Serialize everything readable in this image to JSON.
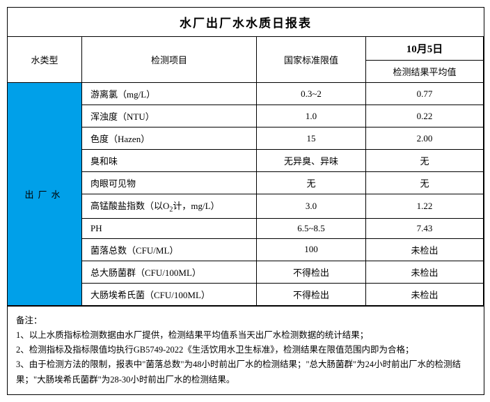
{
  "title": "水厂出厂水水质日报表",
  "header": {
    "type": "水类型",
    "item": "检测项目",
    "standard": "国家标准限值",
    "date": "10月5日",
    "result": "检测结果平均值"
  },
  "water_type": "出厂水",
  "rows": [
    {
      "item": "游离氯（mg/L）",
      "std": "0.3~2",
      "res": "0.77"
    },
    {
      "item": "浑浊度（NTU）",
      "std": "1.0",
      "res": "0.22"
    },
    {
      "item": "色度（Hazen）",
      "std": "15",
      "res": "2.00"
    },
    {
      "item": "臭和味",
      "std": "无异臭、异味",
      "res": "无"
    },
    {
      "item": "肉眼可见物",
      "std": "无",
      "res": "无"
    },
    {
      "item_html": "高锰酸盐指数（以O<sub>2</sub>计，mg/L）",
      "item": "高锰酸盐指数（以O2计，mg/L）",
      "std": "3.0",
      "res": "1.22"
    },
    {
      "item": "PH",
      "std": "6.5~8.5",
      "res": "7.43"
    },
    {
      "item": "菌落总数（CFU/ML）",
      "std": "100",
      "res": "未检出"
    },
    {
      "item": "总大肠菌群（CFU/100ML）",
      "std": "不得检出",
      "res": "未检出"
    },
    {
      "item": "大肠埃希氏菌（CFU/100ML）",
      "std": "不得检出",
      "res": "未检出"
    }
  ],
  "notes": {
    "label": "备注：",
    "n1": "1、以上水质指标检测数据由水厂提供，检测结果平均值系当天出厂水检测数据的统计结果；",
    "n2": "2、检测指标及指标限值均执行GB5749-2022《生活饮用水卫生标准》，检测结果在限值范围内即为合格；",
    "n3": "3、由于检测方法的限制，报表中\"菌落总数\"为48小时前出厂水的检测结果；\"总大肠菌群\"为24小时前出厂水的检测结果；\"大肠埃希氏菌群\"为28-30小时前出厂水的检测结果。"
  },
  "colors": {
    "type_bg": "#00a0e9",
    "border": "#000000",
    "bg": "#ffffff"
  }
}
